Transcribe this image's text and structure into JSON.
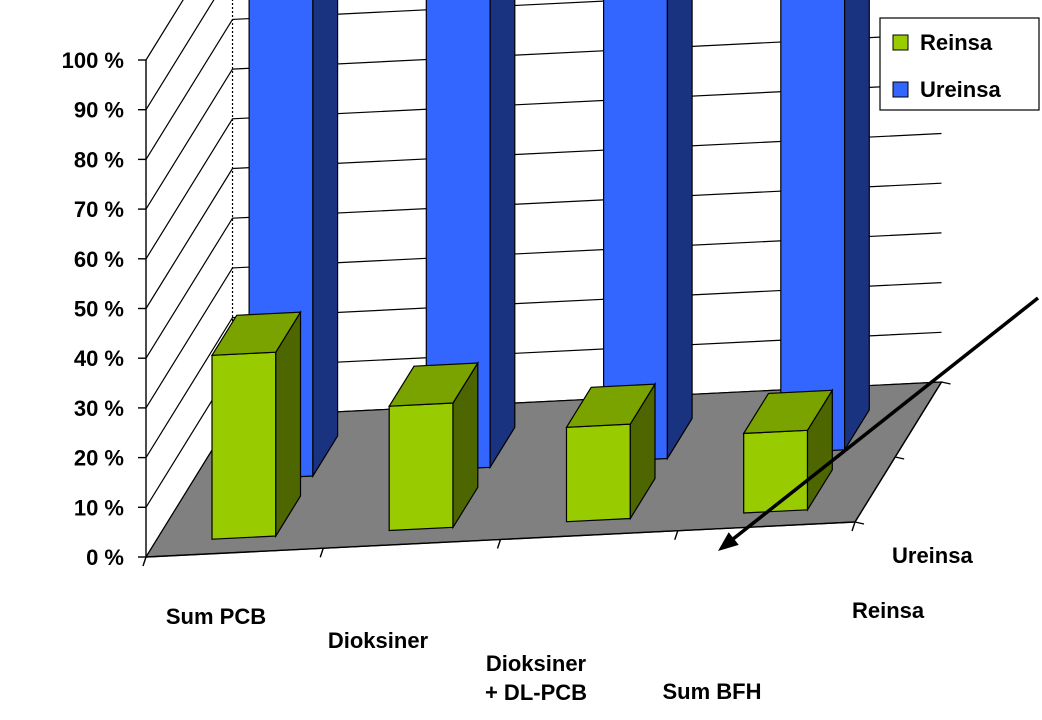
{
  "chart_data": {
    "type": "bar",
    "subtype": "3d-clustered-column-series-in-depth",
    "title": "",
    "xlabel": "",
    "ylabel": "",
    "categories": [
      "Sum PCB",
      "Dioksiner",
      "Dioksiner\n+ DL-PCB",
      "Sum BFH"
    ],
    "depth_labels": [
      "Ureinsa",
      "Reinsa"
    ],
    "yticks": [
      "0 %",
      "10 %",
      "20 %",
      "30 %",
      "40 %",
      "50 %",
      "60 %",
      "70 %",
      "80 %",
      "90 %",
      "100 %"
    ],
    "ylim": [
      0,
      100
    ],
    "grid": true,
    "series": [
      {
        "name": "Reinsa",
        "values": [
          37,
          25,
          19,
          16
        ],
        "color": "#99cc00",
        "side_color": "#4d6600",
        "top_color": "#7aa300"
      },
      {
        "name": "Ureinsa",
        "values": [
          100,
          100,
          100,
          100
        ],
        "color": "#3366ff",
        "side_color": "#1a3380",
        "top_color": "#2952cc"
      }
    ],
    "legend": {
      "position": "top-right",
      "items": [
        {
          "label": "Reinsa",
          "color": "#99cc00"
        },
        {
          "label": "Ureinsa",
          "color": "#3366ff"
        }
      ]
    },
    "floor_color": "#808080",
    "annotation": {
      "type": "arrow",
      "target": "Reinsa / Sum BFH"
    }
  }
}
